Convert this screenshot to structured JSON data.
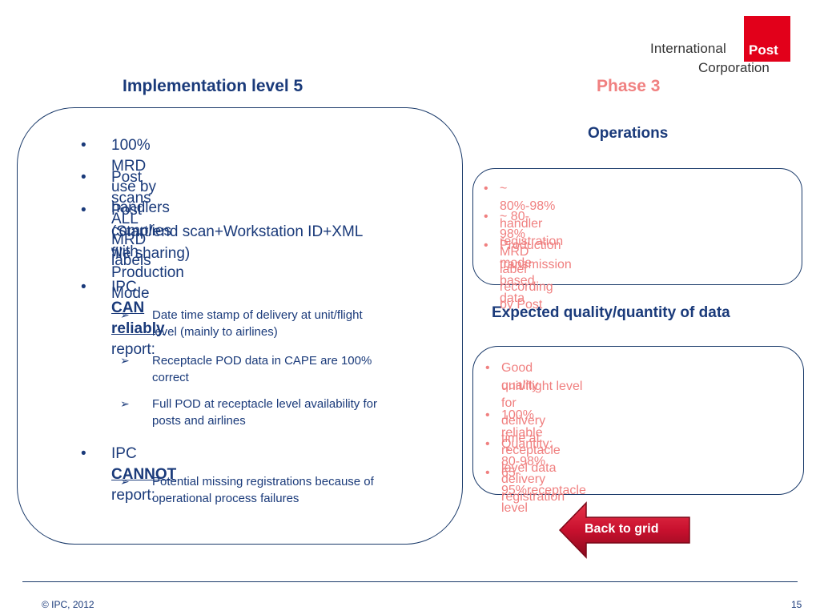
{
  "logo": {
    "line1": "International",
    "line2": "Corporation",
    "box_word": "Post",
    "brand_color": "#e2001a"
  },
  "left_title": "Implementation level 5",
  "phase_title": "Phase 3",
  "main_panel": {
    "bullets": [
      "100% MRD use by handlers",
      "Post scans ALL MRD labels",
      "Post complies with Production Mode",
      "(Start/end scan+Workstation ID+XML",
      "file sharing)"
    ],
    "can_prefix": "IPC ",
    "can_emphasis": "CAN reliably ",
    "can_suffix": "report:",
    "can_items": [
      [
        "Date time stamp of delivery at unit/flight",
        "level (mainly to airlines)"
      ],
      [
        "Receptacle POD data in CAPE are 100%",
        "correct"
      ],
      [
        "Full POD at receptacle level availability for",
        "posts and airlines"
      ]
    ],
    "cannot_prefix": "IPC ",
    "cannot_emphasis": "CANNOT ",
    "cannot_suffix": "report:",
    "cannot_items": [
      [
        "Potential missing registrations because of",
        "operational process failures"
      ]
    ]
  },
  "operations": {
    "heading": "Operations",
    "items": [
      "~ 80%-98% handler registration",
      "~ 80-98% MRD label recording by Post",
      "Production mode based data",
      "transmission"
    ]
  },
  "quality": {
    "heading": "Expected quality/quantity of data",
    "items": [
      "Good quality for delivery time at",
      "unit/flight level",
      "100% reliable receptacle level data",
      "Quantity: 80-98% delivery registration",
      "65-95%receptacle level"
    ]
  },
  "back_button": {
    "label": "Back to grid",
    "color": "#c8102e"
  },
  "footer": {
    "copyright": "© IPC, 2012",
    "page": "15"
  },
  "colors": {
    "navy": "#1a3a7a",
    "pink": "#f08080"
  }
}
